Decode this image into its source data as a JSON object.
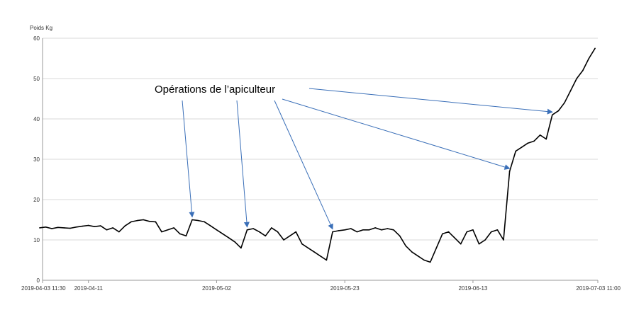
{
  "chart_data": {
    "type": "line",
    "title": "",
    "xlabel": "",
    "ylabel": "Poids Kg",
    "ylim": [
      0,
      60
    ],
    "xlim": [
      "2019-04-03 11:30",
      "2019-07-03 11:00"
    ],
    "grid": true,
    "y_ticks": [
      {
        "value": 0,
        "label": "0"
      },
      {
        "value": 10,
        "label": "10"
      },
      {
        "value": 20,
        "label": "20"
      },
      {
        "value": 30,
        "label": "30"
      },
      {
        "value": 40,
        "label": "40"
      },
      {
        "value": 50,
        "label": "50"
      },
      {
        "value": 60,
        "label": "60"
      }
    ],
    "x_ticks": [
      {
        "value": "2019-04-03 11:30",
        "label": "2019-04-03 11:30"
      },
      {
        "value": "2019-04-11",
        "label": "2019-04-11"
      },
      {
        "value": "2019-05-02",
        "label": "2019-05-02"
      },
      {
        "value": "2019-05-23",
        "label": "2019-05-23"
      },
      {
        "value": "2019-06-13",
        "label": "2019-06-13"
      },
      {
        "value": "2019-07-03 11:00",
        "label": "2019-07-03 11:00"
      }
    ],
    "series_color": "#000000",
    "annotation_color": "#3a6fb8",
    "series": [
      {
        "points": [
          [
            "2019-04-03",
            13.0
          ],
          [
            "2019-04-04",
            13.2
          ],
          [
            "2019-04-05",
            12.8
          ],
          [
            "2019-04-06",
            13.1
          ],
          [
            "2019-04-07",
            13.0
          ],
          [
            "2019-04-08",
            12.9
          ],
          [
            "2019-04-09",
            13.2
          ],
          [
            "2019-04-10",
            13.4
          ],
          [
            "2019-04-11",
            13.6
          ],
          [
            "2019-04-12",
            13.3
          ],
          [
            "2019-04-13",
            13.5
          ],
          [
            "2019-04-14",
            12.5
          ],
          [
            "2019-04-15",
            13.0
          ],
          [
            "2019-04-16",
            12.0
          ],
          [
            "2019-04-17",
            13.5
          ],
          [
            "2019-04-18",
            14.5
          ],
          [
            "2019-04-19",
            14.8
          ],
          [
            "2019-04-20",
            15.0
          ],
          [
            "2019-04-21",
            14.6
          ],
          [
            "2019-04-22",
            14.5
          ],
          [
            "2019-04-23",
            12.0
          ],
          [
            "2019-04-24",
            12.5
          ],
          [
            "2019-04-25",
            13.0
          ],
          [
            "2019-04-26",
            11.5
          ],
          [
            "2019-04-27",
            11.0
          ],
          [
            "2019-04-28",
            15.0
          ],
          [
            "2019-04-29",
            14.8
          ],
          [
            "2019-04-30",
            14.5
          ],
          [
            "2019-05-01",
            13.5
          ],
          [
            "2019-05-02",
            12.5
          ],
          [
            "2019-05-03",
            11.5
          ],
          [
            "2019-05-04",
            10.5
          ],
          [
            "2019-05-05",
            9.5
          ],
          [
            "2019-05-06",
            8.0
          ],
          [
            "2019-05-07",
            12.5
          ],
          [
            "2019-05-08",
            12.8
          ],
          [
            "2019-05-09",
            12.0
          ],
          [
            "2019-05-10",
            11.0
          ],
          [
            "2019-05-11",
            13.0
          ],
          [
            "2019-05-12",
            12.0
          ],
          [
            "2019-05-13",
            10.0
          ],
          [
            "2019-05-14",
            11.0
          ],
          [
            "2019-05-15",
            12.0
          ],
          [
            "2019-05-16",
            9.0
          ],
          [
            "2019-05-17",
            8.0
          ],
          [
            "2019-05-18",
            7.0
          ],
          [
            "2019-05-19",
            6.0
          ],
          [
            "2019-05-20",
            5.0
          ],
          [
            "2019-05-21",
            12.0
          ],
          [
            "2019-05-22",
            12.3
          ],
          [
            "2019-05-23",
            12.5
          ],
          [
            "2019-05-24",
            12.8
          ],
          [
            "2019-05-25",
            12.0
          ],
          [
            "2019-05-26",
            12.5
          ],
          [
            "2019-05-27",
            12.5
          ],
          [
            "2019-05-28",
            13.0
          ],
          [
            "2019-05-29",
            12.5
          ],
          [
            "2019-05-30",
            12.8
          ],
          [
            "2019-05-31",
            12.5
          ],
          [
            "2019-06-01",
            11.0
          ],
          [
            "2019-06-02",
            8.5
          ],
          [
            "2019-06-03",
            7.0
          ],
          [
            "2019-06-04",
            6.0
          ],
          [
            "2019-06-05",
            5.0
          ],
          [
            "2019-06-06",
            4.5
          ],
          [
            "2019-06-07",
            8.0
          ],
          [
            "2019-06-08",
            11.5
          ],
          [
            "2019-06-09",
            12.0
          ],
          [
            "2019-06-10",
            10.5
          ],
          [
            "2019-06-11",
            9.0
          ],
          [
            "2019-06-12",
            12.0
          ],
          [
            "2019-06-13",
            12.5
          ],
          [
            "2019-06-14",
            9.0
          ],
          [
            "2019-06-15",
            10.0
          ],
          [
            "2019-06-16",
            12.0
          ],
          [
            "2019-06-17",
            12.5
          ],
          [
            "2019-06-18",
            10.0
          ],
          [
            "2019-06-19",
            27.0
          ],
          [
            "2019-06-20",
            32.0
          ],
          [
            "2019-06-21",
            33.0
          ],
          [
            "2019-06-22",
            34.0
          ],
          [
            "2019-06-23",
            34.5
          ],
          [
            "2019-06-24",
            36.0
          ],
          [
            "2019-06-25",
            35.0
          ],
          [
            "2019-06-26",
            41.0
          ],
          [
            "2019-06-27",
            42.0
          ],
          [
            "2019-06-28",
            44.0
          ],
          [
            "2019-06-29",
            47.0
          ],
          [
            "2019-06-30",
            50.0
          ],
          [
            "2019-07-01",
            52.0
          ],
          [
            "2019-07-02",
            55.0
          ],
          [
            "2019-07-03",
            57.5
          ]
        ]
      }
    ],
    "annotations": [
      {
        "text": "Opérations de l’apiculteur",
        "targets": [
          [
            "2019-04-28",
            15.0
          ],
          [
            "2019-05-07",
            12.5
          ],
          [
            "2019-05-21",
            12.0
          ],
          [
            "2019-06-19",
            27.0
          ],
          [
            "2019-06-26",
            41.0
          ]
        ]
      }
    ]
  }
}
